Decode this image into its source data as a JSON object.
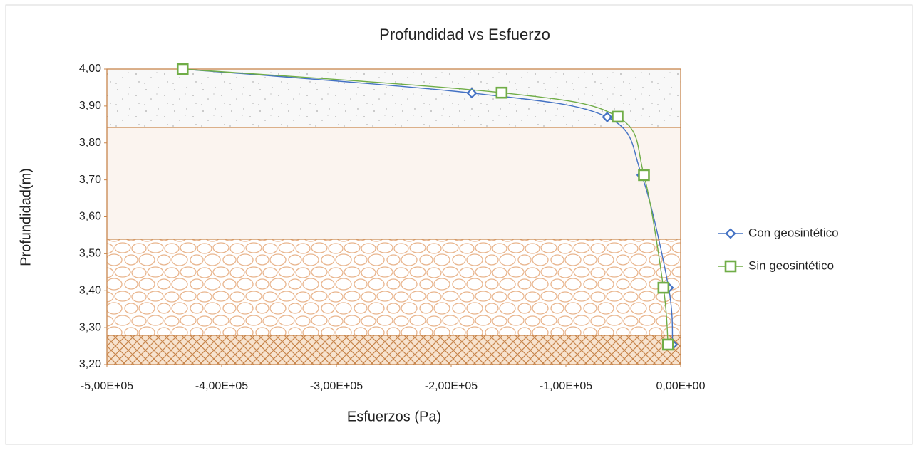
{
  "chart_data": {
    "type": "line",
    "title": "Profundidad vs Esfuerzo",
    "x_label": "Esfuerzos (Pa)",
    "y_label": "Profundidad(m)",
    "xlim": [
      -500000,
      0
    ],
    "ylim": [
      3.2,
      4.0
    ],
    "xticks": [
      {
        "value": -500000,
        "label": "-5,00E+05"
      },
      {
        "value": -400000,
        "label": "-4,00E+05"
      },
      {
        "value": -300000,
        "label": "-3,00E+05"
      },
      {
        "value": -200000,
        "label": "-2,00E+05"
      },
      {
        "value": -100000,
        "label": "-1,00E+05"
      },
      {
        "value": 0,
        "label": "0,00E+00"
      }
    ],
    "yticks": [
      {
        "value": 3.2,
        "label": "3,20"
      },
      {
        "value": 3.3,
        "label": "3,30"
      },
      {
        "value": 3.4,
        "label": "3,40"
      },
      {
        "value": 3.5,
        "label": "3,50"
      },
      {
        "value": 3.6,
        "label": "3,60"
      },
      {
        "value": 3.7,
        "label": "3,70"
      },
      {
        "value": 3.8,
        "label": "3,80"
      },
      {
        "value": 3.9,
        "label": "3,90"
      },
      {
        "value": 4.0,
        "label": "4,00"
      }
    ],
    "legend": "right",
    "series": [
      {
        "name": "Con geosintético",
        "color": "#4472c4",
        "marker": "diamond",
        "x": [
          -434000,
          -182000,
          -64000,
          -34000,
          -10500,
          -7000
        ],
        "values": [
          4.0,
          3.935,
          3.87,
          3.713,
          3.408,
          3.254
        ]
      },
      {
        "name": "Sin geosintético",
        "color": "#70ad47",
        "marker": "square",
        "x": [
          -434000,
          -156000,
          -55000,
          -32000,
          -15000,
          -11000
        ],
        "values": [
          4.0,
          3.936,
          3.871,
          3.713,
          3.408,
          3.254
        ]
      }
    ]
  }
}
